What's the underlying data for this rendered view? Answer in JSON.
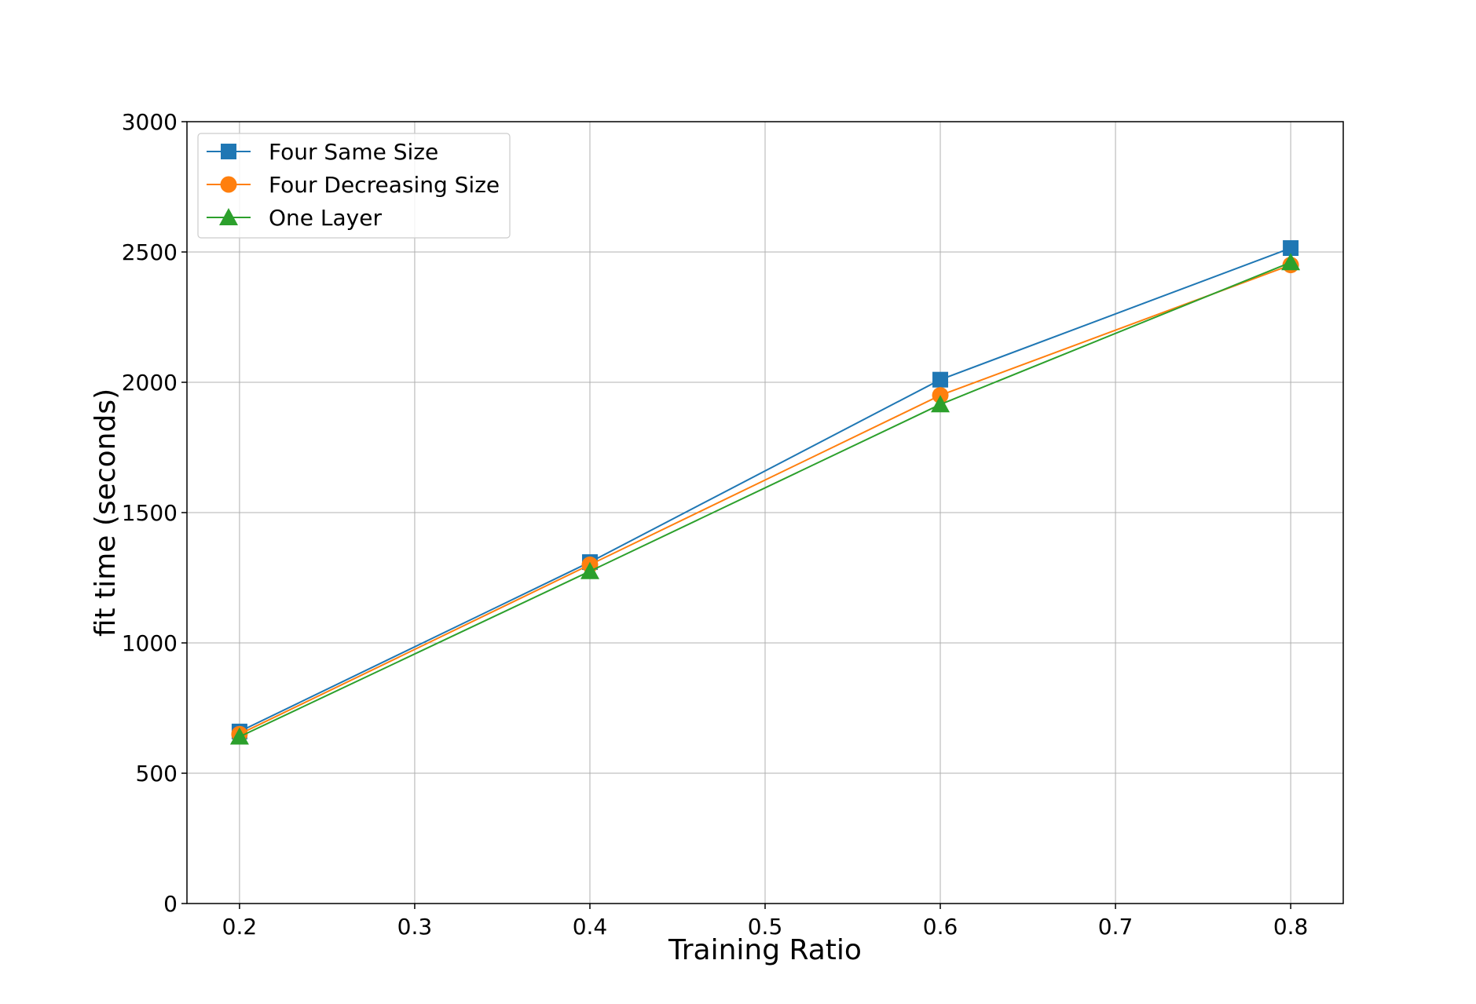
{
  "chart_data": {
    "type": "line",
    "title": "",
    "xlabel": "Training Ratio",
    "ylabel": "fit time (seconds)",
    "xlim": [
      0.17,
      0.83
    ],
    "ylim": [
      0,
      3000
    ],
    "xticks": [
      0.2,
      0.3,
      0.4,
      0.5,
      0.6,
      0.7,
      0.8
    ],
    "xtick_labels": [
      "0.2",
      "0.3",
      "0.4",
      "0.5",
      "0.6",
      "0.7",
      "0.8"
    ],
    "yticks": [
      0,
      500,
      1000,
      1500,
      2000,
      2500,
      3000
    ],
    "ytick_labels": [
      "0",
      "500",
      "1000",
      "1500",
      "2000",
      "2500",
      "3000"
    ],
    "grid": true,
    "legend_position": "top-left",
    "x": [
      0.2,
      0.4,
      0.6,
      0.8
    ],
    "series": [
      {
        "name": "Four Same Size",
        "color": "#1f77b4",
        "marker": "square",
        "values": [
          660,
          1310,
          2010,
          2515
        ]
      },
      {
        "name": "Four Decreasing Size",
        "color": "#ff7f0e",
        "marker": "circle",
        "values": [
          650,
          1300,
          1950,
          2450
        ]
      },
      {
        "name": "One Layer",
        "color": "#2ca02c",
        "marker": "triangle",
        "values": [
          640,
          1275,
          1915,
          2460
        ]
      }
    ]
  }
}
